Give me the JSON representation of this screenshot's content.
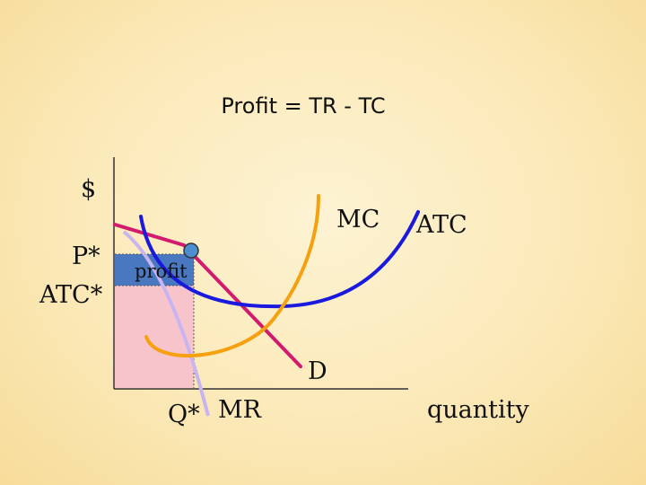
{
  "title": "Profit = TR - TC",
  "labels": {
    "y_axis": "$",
    "price": "P*",
    "atc_value": "ATC*",
    "profit": "profit",
    "quantity_star": "Q*",
    "x_axis": "quantity",
    "mc": "MC",
    "atc": "ATC",
    "demand": "D",
    "mr": "MR"
  },
  "colors": {
    "mc": "#f5a00e",
    "atc": "#1a1adf",
    "demand": "#d21b6e",
    "mr": "#c8b4f0",
    "profit_area": "#4a78c0",
    "cost_area": "#f8c4cc",
    "point": "#4c8ed0",
    "axis": "#333333"
  }
}
